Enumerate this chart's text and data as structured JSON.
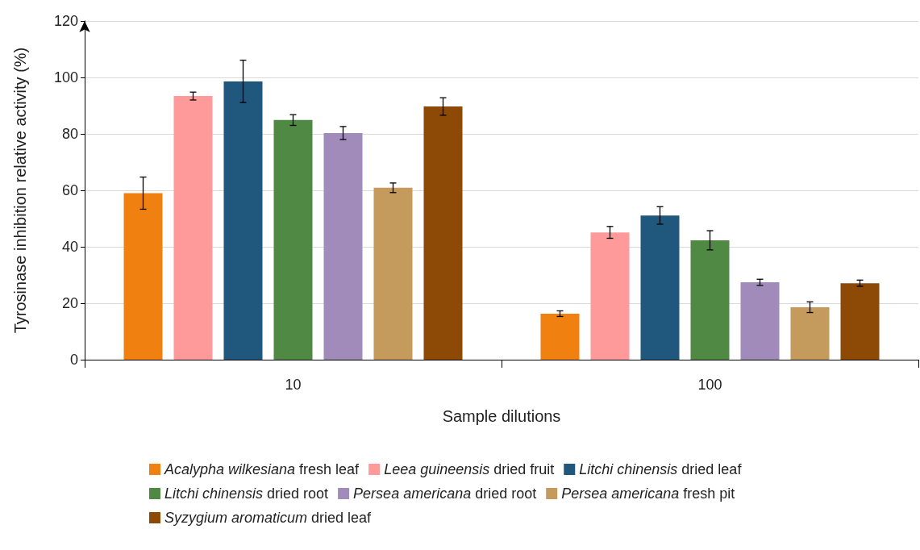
{
  "chart_data": {
    "type": "bar",
    "xlabel": "Sample dilutions",
    "ylabel": "Tyrosinase inhibition relative activity (%)",
    "categories": [
      "10",
      "100"
    ],
    "series": [
      {
        "name": "Acalypha wilkesiana fresh leaf",
        "color": "#f0800f",
        "values": [
          59,
          16.3
        ],
        "errors": [
          5.7,
          1
        ]
      },
      {
        "name": "Leea guineensis dried fruit",
        "color": "#ff9a9a",
        "values": [
          93.4,
          45.1
        ],
        "errors": [
          1.4,
          2.1
        ]
      },
      {
        "name": "Litchi chinensis dried leaf",
        "color": "#1f587c",
        "values": [
          98.6,
          51.1
        ],
        "errors": [
          7.5,
          3.1
        ]
      },
      {
        "name": "Litchi chinensis dried root",
        "color": "#4f8944",
        "values": [
          84.9,
          42.3
        ],
        "errors": [
          1.9,
          3.4
        ]
      },
      {
        "name": "Persea americana dried root",
        "color": "#a18bbb",
        "values": [
          80.3,
          27.4
        ],
        "errors": [
          2.3,
          1.1
        ]
      },
      {
        "name": "Persea americana fresh pit",
        "color": "#c49b5d",
        "values": [
          60.9,
          18.6
        ],
        "errors": [
          1.7,
          1.9
        ]
      },
      {
        "name": "Syzygium aromaticum dried leaf",
        "color": "#8d4a07",
        "values": [
          89.7,
          27.1
        ],
        "errors": [
          3.1,
          1.1
        ]
      }
    ],
    "ylim": [
      0,
      120
    ],
    "yticks": [
      0,
      20,
      40,
      60,
      80,
      100,
      120
    ],
    "grid": "y",
    "legend": "bottom"
  }
}
